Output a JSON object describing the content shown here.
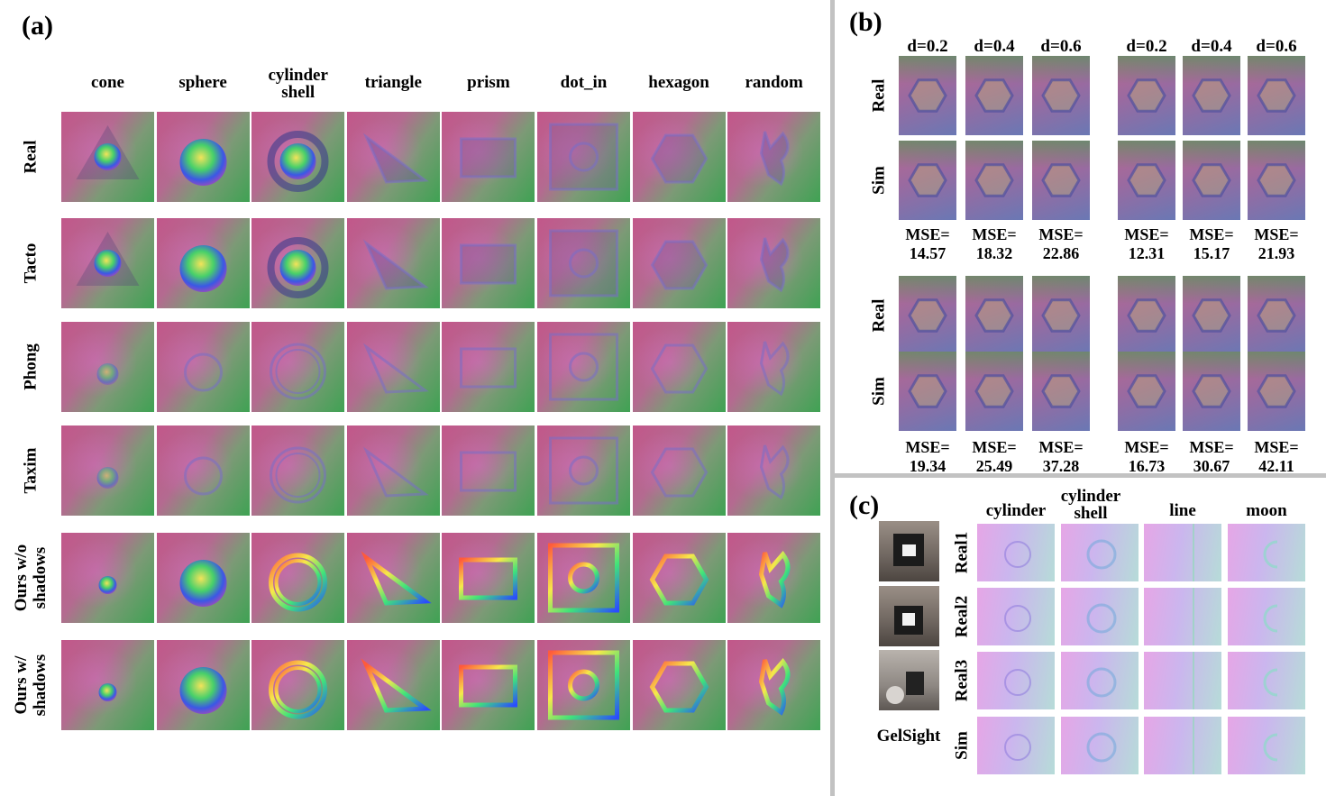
{
  "panel_a": {
    "label": "(a)",
    "columns": [
      "cone",
      "sphere",
      "cylinder shell",
      "triangle",
      "prism",
      "dot_in",
      "hexagon",
      "random"
    ],
    "rows": [
      "Real",
      "Tacto",
      "Phong",
      "Taxim",
      "Ours w/o shadows",
      "Ours w/ shadows"
    ]
  },
  "panel_b": {
    "label": "(b)",
    "depths": [
      "d=0.2",
      "d=0.4",
      "d=0.6",
      "d=0.2",
      "d=0.4",
      "d=0.6"
    ],
    "rows": [
      "Real",
      "Sim",
      "Real",
      "Sim"
    ],
    "mse_top": [
      {
        "label": "MSE=",
        "value": "14.57"
      },
      {
        "label": "MSE=",
        "value": "18.32"
      },
      {
        "label": "MSE=",
        "value": "22.86"
      },
      {
        "label": "MSE=",
        "value": "12.31"
      },
      {
        "label": "MSE=",
        "value": "15.17"
      },
      {
        "label": "MSE=",
        "value": "21.93"
      }
    ],
    "mse_bottom": [
      {
        "label": "MSE=",
        "value": "19.34"
      },
      {
        "label": "MSE=",
        "value": "25.49"
      },
      {
        "label": "MSE=",
        "value": "37.28"
      },
      {
        "label": "MSE=",
        "value": "16.73"
      },
      {
        "label": "MSE=",
        "value": "30.67"
      },
      {
        "label": "MSE=",
        "value": "42.11"
      }
    ]
  },
  "panel_c": {
    "label": "(c)",
    "columns": [
      "cylinder",
      "cylinder shell",
      "line",
      "moon"
    ],
    "rows": [
      "Real1",
      "Real2",
      "Real3",
      "Sim"
    ],
    "sensor_label": "GelSight"
  }
}
